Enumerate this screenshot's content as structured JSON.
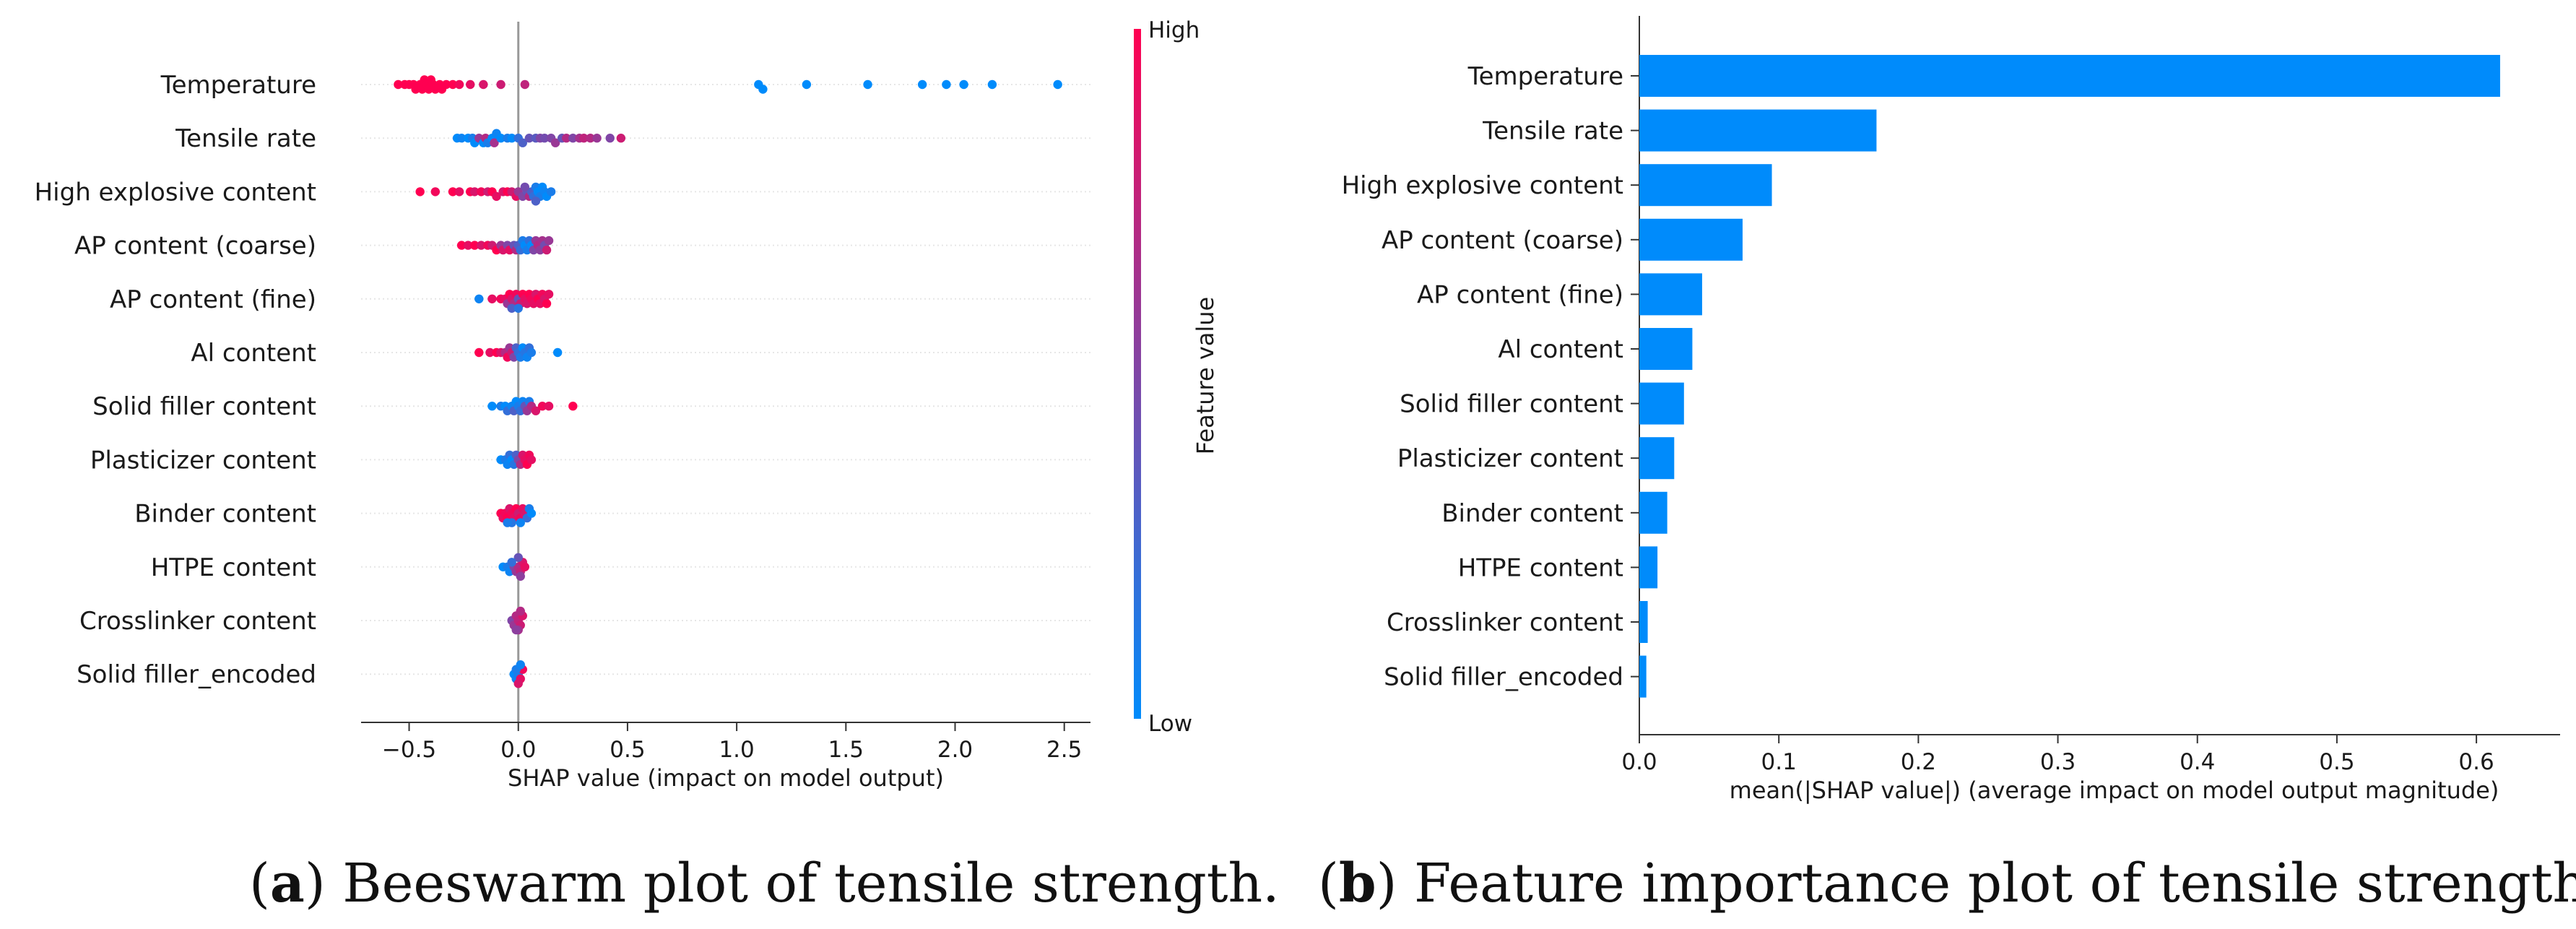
{
  "chart_data": [
    {
      "type": "scatter",
      "subtype": "beeswarm",
      "caption": {
        "open": "(",
        "letter": "a",
        "rest": ") Beeswarm plot of tensile strength."
      },
      "xlabel": "SHAP value (impact on model output)",
      "xlim": [
        -0.72,
        2.62
      ],
      "xticks": [
        -0.5,
        0.0,
        0.5,
        1.0,
        1.5,
        2.0,
        2.5
      ],
      "xtick_labels": [
        "−0.5",
        "0.0",
        "0.5",
        "1.0",
        "1.5",
        "2.0",
        "2.5"
      ],
      "zero_line": 0,
      "colorbar": {
        "title": "Feature value",
        "high": "High",
        "low": "Low",
        "low_color": "#008bfb",
        "high_color": "#ff0051"
      },
      "features": [
        {
          "name": "Temperature",
          "points": [
            [
              -0.55,
              1
            ],
            [
              -0.52,
              1
            ],
            [
              -0.5,
              1
            ],
            [
              -0.48,
              1
            ],
            [
              -0.47,
              1
            ],
            [
              -0.45,
              1
            ],
            [
              -0.44,
              1
            ],
            [
              -0.43,
              1
            ],
            [
              -0.42,
              1
            ],
            [
              -0.41,
              1
            ],
            [
              -0.4,
              1
            ],
            [
              -0.39,
              1
            ],
            [
              -0.38,
              1
            ],
            [
              -0.36,
              1
            ],
            [
              -0.35,
              1
            ],
            [
              -0.33,
              1
            ],
            [
              -0.3,
              1
            ],
            [
              -0.27,
              0.95
            ],
            [
              -0.22,
              0.9
            ],
            [
              -0.16,
              0.85
            ],
            [
              -0.08,
              0.8
            ],
            [
              0.03,
              0.75
            ],
            [
              1.1,
              0
            ],
            [
              1.12,
              0
            ],
            [
              1.32,
              0
            ],
            [
              1.6,
              0
            ],
            [
              1.85,
              0
            ],
            [
              1.96,
              0
            ],
            [
              2.04,
              0
            ],
            [
              2.17,
              0
            ],
            [
              2.47,
              0
            ]
          ]
        },
        {
          "name": "Tensile rate",
          "points": [
            [
              -0.28,
              0
            ],
            [
              -0.26,
              0.05
            ],
            [
              -0.23,
              0
            ],
            [
              -0.21,
              0.1
            ],
            [
              -0.2,
              0
            ],
            [
              -0.18,
              0.6
            ],
            [
              -0.16,
              0
            ],
            [
              -0.15,
              0.7
            ],
            [
              -0.14,
              0.1
            ],
            [
              -0.12,
              0
            ],
            [
              -0.11,
              0.65
            ],
            [
              -0.1,
              0.05
            ],
            [
              -0.08,
              0
            ],
            [
              -0.05,
              0.1
            ],
            [
              -0.03,
              0
            ],
            [
              0.0,
              0.2
            ],
            [
              0.02,
              0.3
            ],
            [
              0.05,
              0.4
            ],
            [
              0.08,
              0.35
            ],
            [
              0.1,
              0.5
            ],
            [
              0.12,
              0.45
            ],
            [
              0.15,
              0.5
            ],
            [
              0.17,
              0.6
            ],
            [
              0.2,
              0.4
            ],
            [
              0.22,
              0.7
            ],
            [
              0.25,
              0.5
            ],
            [
              0.28,
              0.65
            ],
            [
              0.3,
              0.75
            ],
            [
              0.33,
              0.7
            ],
            [
              0.36,
              0.6
            ],
            [
              0.42,
              0.5
            ],
            [
              0.47,
              0.8
            ]
          ]
        },
        {
          "name": "High explosive content",
          "points": [
            [
              -0.45,
              1
            ],
            [
              -0.38,
              0.95
            ],
            [
              -0.3,
              1
            ],
            [
              -0.27,
              0.9
            ],
            [
              -0.22,
              1
            ],
            [
              -0.2,
              0.85
            ],
            [
              -0.17,
              0.95
            ],
            [
              -0.14,
              0.8
            ],
            [
              -0.12,
              1
            ],
            [
              -0.1,
              0.9
            ],
            [
              -0.07,
              0.85
            ],
            [
              -0.05,
              1
            ],
            [
              -0.03,
              0.8
            ],
            [
              -0.01,
              0.9
            ],
            [
              0.0,
              0.6
            ],
            [
              0.02,
              0.5
            ],
            [
              0.04,
              0.4
            ],
            [
              0.05,
              0.7
            ],
            [
              0.06,
              0.3
            ],
            [
              0.07,
              0.2
            ],
            [
              0.08,
              0.1
            ],
            [
              0.09,
              0
            ],
            [
              0.1,
              0.1
            ],
            [
              0.11,
              0
            ],
            [
              0.12,
              0.05
            ],
            [
              0.13,
              0
            ],
            [
              0.15,
              0.1
            ],
            [
              0.03,
              0.45
            ],
            [
              0.08,
              0.3
            ]
          ]
        },
        {
          "name": "AP content (coarse)",
          "points": [
            [
              -0.26,
              1
            ],
            [
              -0.23,
              0.9
            ],
            [
              -0.2,
              1
            ],
            [
              -0.17,
              0.85
            ],
            [
              -0.14,
              0.95
            ],
            [
              -0.12,
              0.8
            ],
            [
              -0.1,
              1
            ],
            [
              -0.08,
              0.6
            ],
            [
              -0.07,
              0.85
            ],
            [
              -0.05,
              0.5
            ],
            [
              -0.04,
              0.9
            ],
            [
              -0.02,
              0.4
            ],
            [
              -0.01,
              0.7
            ],
            [
              0.0,
              0.3
            ],
            [
              0.01,
              0.2
            ],
            [
              0.02,
              0.1
            ],
            [
              0.03,
              0
            ],
            [
              0.04,
              0.1
            ],
            [
              0.05,
              0.2
            ],
            [
              0.06,
              0
            ],
            [
              0.07,
              0.5
            ],
            [
              0.08,
              0.6
            ],
            [
              0.09,
              0.7
            ],
            [
              0.1,
              0.55
            ],
            [
              0.11,
              0.65
            ],
            [
              0.12,
              0.45
            ],
            [
              0.13,
              0.8
            ],
            [
              0.14,
              0.6
            ]
          ]
        },
        {
          "name": "AP content (fine)",
          "points": [
            [
              -0.18,
              0.05
            ],
            [
              -0.12,
              0.9
            ],
            [
              -0.08,
              0.95
            ],
            [
              -0.06,
              0.9
            ],
            [
              -0.05,
              0.6
            ],
            [
              -0.04,
              1
            ],
            [
              -0.03,
              0.85
            ],
            [
              -0.02,
              0.7
            ],
            [
              -0.01,
              0.95
            ],
            [
              0.0,
              0.4
            ],
            [
              0.01,
              0.8
            ],
            [
              0.02,
              1
            ],
            [
              0.03,
              0.9
            ],
            [
              0.04,
              0.85
            ],
            [
              0.05,
              1
            ],
            [
              0.06,
              0.95
            ],
            [
              0.07,
              0.9
            ],
            [
              0.08,
              0.85
            ],
            [
              0.09,
              1
            ],
            [
              0.1,
              0.9
            ],
            [
              0.11,
              0.95
            ],
            [
              0.12,
              0.85
            ],
            [
              0.13,
              1
            ],
            [
              0.14,
              0.9
            ],
            [
              -0.03,
              0.3
            ],
            [
              0.0,
              0.15
            ]
          ]
        },
        {
          "name": "Al content",
          "points": [
            [
              -0.18,
              1
            ],
            [
              -0.13,
              0.9
            ],
            [
              -0.1,
              1
            ],
            [
              -0.08,
              0.85
            ],
            [
              -0.06,
              0.7
            ],
            [
              -0.05,
              0.95
            ],
            [
              -0.04,
              0.6
            ],
            [
              -0.03,
              0.8
            ],
            [
              -0.02,
              0.5
            ],
            [
              -0.01,
              0.3
            ],
            [
              0.0,
              0.2
            ],
            [
              0.01,
              0.1
            ],
            [
              0.02,
              0
            ],
            [
              0.03,
              0.15
            ],
            [
              0.04,
              0.05
            ],
            [
              0.05,
              0.2
            ],
            [
              0.06,
              0.1
            ],
            [
              0.18,
              0
            ]
          ]
        },
        {
          "name": "Solid filler content",
          "points": [
            [
              -0.12,
              0
            ],
            [
              -0.08,
              0.1
            ],
            [
              -0.06,
              0
            ],
            [
              -0.05,
              0.2
            ],
            [
              -0.03,
              0.05
            ],
            [
              -0.02,
              0.3
            ],
            [
              -0.01,
              0
            ],
            [
              0.0,
              0.1
            ],
            [
              0.01,
              0.2
            ],
            [
              0.02,
              0.05
            ],
            [
              0.03,
              0.4
            ],
            [
              0.04,
              0.6
            ],
            [
              0.05,
              0.1
            ],
            [
              0.06,
              0.7
            ],
            [
              0.08,
              0.85
            ],
            [
              0.11,
              0.95
            ],
            [
              0.14,
              0.9
            ],
            [
              0.25,
              1
            ]
          ]
        },
        {
          "name": "Plasticizer content",
          "points": [
            [
              -0.08,
              0
            ],
            [
              -0.06,
              0.1
            ],
            [
              -0.05,
              0.05
            ],
            [
              -0.04,
              0.2
            ],
            [
              -0.03,
              0
            ],
            [
              -0.02,
              0.15
            ],
            [
              -0.01,
              0.3
            ],
            [
              0.0,
              0.5
            ],
            [
              0.01,
              0.7
            ],
            [
              0.02,
              0.85
            ],
            [
              0.03,
              0.9
            ],
            [
              0.04,
              1
            ],
            [
              0.05,
              0.95
            ],
            [
              0.06,
              0.9
            ]
          ]
        },
        {
          "name": "Binder content",
          "points": [
            [
              -0.08,
              1
            ],
            [
              -0.07,
              0.9
            ],
            [
              -0.06,
              0.95
            ],
            [
              -0.05,
              1
            ],
            [
              -0.04,
              0.85
            ],
            [
              -0.03,
              0.95
            ],
            [
              -0.02,
              0.9
            ],
            [
              -0.01,
              1
            ],
            [
              0.0,
              0.8
            ],
            [
              0.01,
              0.95
            ],
            [
              0.02,
              0.9
            ],
            [
              0.03,
              0.85
            ],
            [
              0.04,
              0.2
            ],
            [
              0.05,
              0.1
            ],
            [
              0.06,
              0
            ],
            [
              -0.03,
              0.15
            ],
            [
              0.01,
              0.05
            ],
            [
              -0.05,
              0.1
            ]
          ]
        },
        {
          "name": "HTPE content",
          "points": [
            [
              -0.07,
              0
            ],
            [
              -0.05,
              0.1
            ],
            [
              -0.04,
              0.05
            ],
            [
              -0.02,
              0.5
            ],
            [
              -0.01,
              0.6
            ],
            [
              0.0,
              0.7
            ],
            [
              0.01,
              0.75
            ],
            [
              0.02,
              0.85
            ],
            [
              0.03,
              0.9
            ],
            [
              0.01,
              0.55
            ],
            [
              0.0,
              0.4
            ],
            [
              -0.03,
              0.2
            ]
          ]
        },
        {
          "name": "Crosslinker content",
          "points": [
            [
              -0.03,
              0.5
            ],
            [
              -0.02,
              0.6
            ],
            [
              -0.01,
              0.7
            ],
            [
              0.0,
              0.75
            ],
            [
              0.01,
              0.8
            ],
            [
              0.02,
              0.85
            ],
            [
              0.0,
              0.65
            ],
            [
              -0.01,
              0.55
            ],
            [
              0.01,
              0.7
            ]
          ]
        },
        {
          "name": "Solid filler_encoded",
          "points": [
            [
              -0.02,
              0
            ],
            [
              -0.01,
              0.05
            ],
            [
              0.0,
              0.1
            ],
            [
              0.01,
              0.9
            ],
            [
              0.02,
              0.95
            ],
            [
              0.0,
              0.85
            ],
            [
              -0.01,
              0.1
            ],
            [
              0.01,
              0.05
            ]
          ]
        }
      ]
    },
    {
      "type": "bar",
      "orientation": "horizontal",
      "caption": {
        "open": "(",
        "letter": "b",
        "rest": ") Feature importance plot of tensile strength."
      },
      "xlabel": "mean(|SHAP value|) (average impact on model output magnitude)",
      "xlim": [
        0,
        0.66
      ],
      "xticks": [
        0.0,
        0.1,
        0.2,
        0.3,
        0.4,
        0.5,
        0.6
      ],
      "xtick_labels": [
        "0.0",
        "0.1",
        "0.2",
        "0.3",
        "0.4",
        "0.5",
        "0.6"
      ],
      "bar_color": "#008bfb",
      "categories": [
        "Temperature",
        "Tensile rate",
        "High explosive content",
        "AP content (coarse)",
        "AP content (fine)",
        "Al content",
        "Solid filler content",
        "Plasticizer content",
        "Binder content",
        "HTPE content",
        "Crosslinker content",
        "Solid filler_encoded"
      ],
      "values": [
        0.617,
        0.17,
        0.095,
        0.074,
        0.045,
        0.038,
        0.032,
        0.025,
        0.02,
        0.013,
        0.006,
        0.005
      ]
    }
  ]
}
